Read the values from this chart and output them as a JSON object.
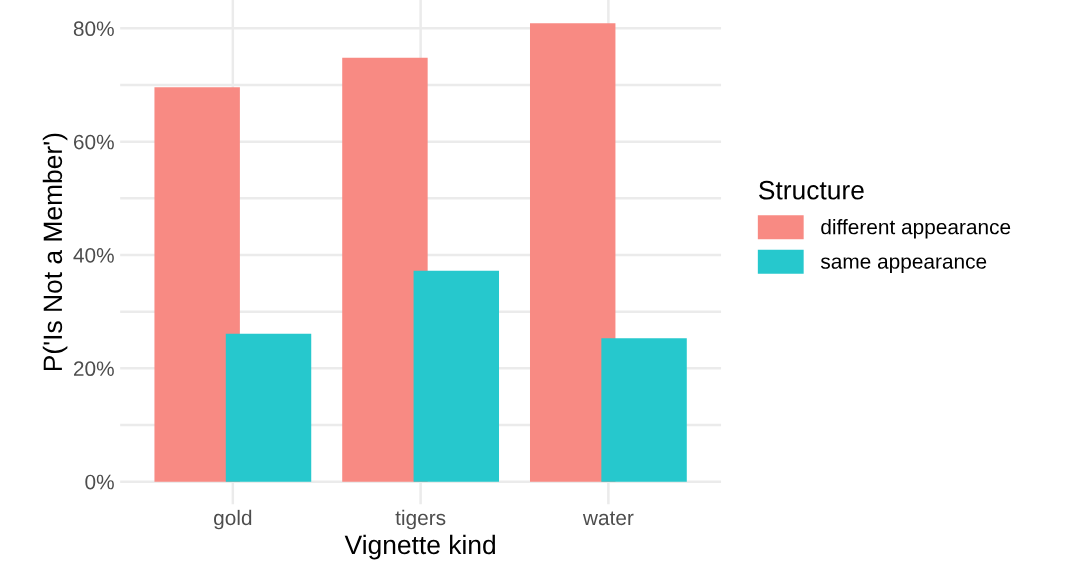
{
  "chart_data": {
    "type": "bar",
    "xlabel": "Vignette kind",
    "ylabel": "P('Is Not a Member')",
    "legend_title": "Structure",
    "legend": "right",
    "grid": true,
    "categories": [
      "gold",
      "tigers",
      "water"
    ],
    "series": [
      {
        "name": "different appearance",
        "color": "#f88a83",
        "values": [
          69.6,
          74.8,
          80.9
        ]
      },
      {
        "name": "same appearance",
        "color": "#26c8cd",
        "values": [
          26.1,
          37.2,
          25.3
        ]
      }
    ],
    "ylim": [
      -4,
      85
    ],
    "yticks": [
      {
        "value": 0,
        "label": "0%"
      },
      {
        "value": 10,
        "label": null
      },
      {
        "value": 20,
        "label": "20%"
      },
      {
        "value": 30,
        "label": null
      },
      {
        "value": 40,
        "label": "40%"
      },
      {
        "value": 50,
        "label": null
      },
      {
        "value": 60,
        "label": "60%"
      },
      {
        "value": 70,
        "label": null
      },
      {
        "value": 80,
        "label": "80%"
      }
    ]
  }
}
